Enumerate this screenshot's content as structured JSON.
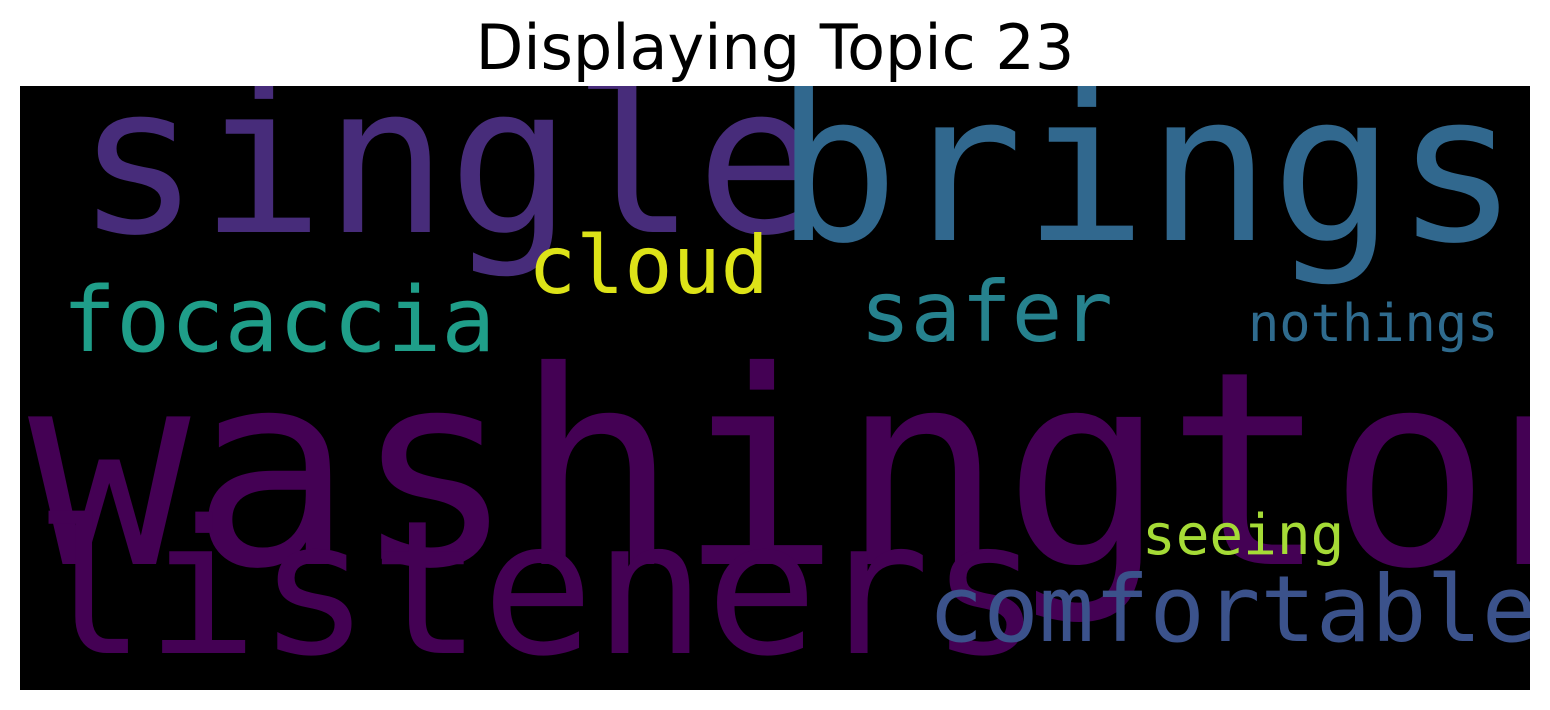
{
  "title": "Displaying Topic 23",
  "background_color": "#000000",
  "words": [
    {
      "text": "washington",
      "color": "#440154"
    },
    {
      "text": "listeners",
      "color": "#440154"
    },
    {
      "text": "single",
      "color": "#472c7a"
    },
    {
      "text": "brings",
      "color": "#31688e"
    },
    {
      "text": "comfortable",
      "color": "#3b528b"
    },
    {
      "text": "focaccia",
      "color": "#1f9e89"
    },
    {
      "text": "safer",
      "color": "#26828e"
    },
    {
      "text": "nothings",
      "color": "#2f6b8e"
    },
    {
      "text": "cloud",
      "color": "#dde318"
    },
    {
      "text": "seeing",
      "color": "#a5db36"
    }
  ]
}
